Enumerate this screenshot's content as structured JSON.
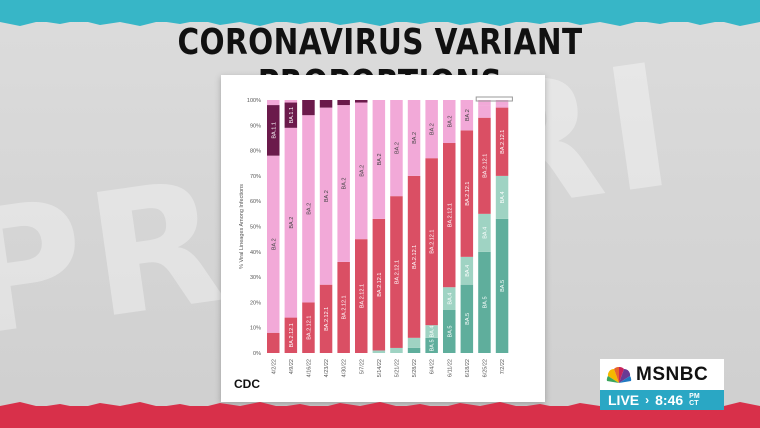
{
  "headline": "CORONAVIRUS VARIANT PROPORTIONS",
  "source_label": "CDC",
  "network": {
    "logo": "MSNBC",
    "live_label": "LIVE",
    "time": "8:46",
    "timezone_top": "PM",
    "timezone_bottom": "CT"
  },
  "colors": {
    "BA.1.1": "#6b1a4b",
    "BA.2": "#f2a9d8",
    "BA.2.12.1": "#da4f64",
    "BA.4": "#9fd3c3",
    "BA.5": "#5fae9c",
    "top_strip": "#37b6c7",
    "bottom_strip": "#d8304a",
    "live_bg": "#2aa7c4"
  },
  "chart_data": {
    "type": "bar",
    "stacked": true,
    "ylabel": "% Viral Lineages Among Infections",
    "ylim": [
      0,
      100
    ],
    "yticks": [
      "0%",
      "10%",
      "20%",
      "30%",
      "40%",
      "50%",
      "60%",
      "70%",
      "80%",
      "90%",
      "100%"
    ],
    "categories": [
      "4/2/22",
      "4/9/22",
      "4/16/22",
      "4/23/22",
      "4/30/22",
      "5/7/22",
      "5/14/22",
      "5/21/22",
      "5/28/22",
      "6/4/22",
      "6/11/22",
      "6/18/22",
      "6/25/22",
      "7/2/22"
    ],
    "series": [
      {
        "name": "BA.5",
        "color_key": "BA.5",
        "values": [
          0,
          0,
          0,
          0,
          0,
          0,
          0,
          0,
          2,
          6,
          17,
          27,
          40,
          53
        ]
      },
      {
        "name": "BA.4",
        "color_key": "BA.4",
        "values": [
          0,
          0,
          0,
          0,
          0,
          0,
          1,
          2,
          4,
          5,
          9,
          11,
          15,
          17
        ]
      },
      {
        "name": "BA.2.12.1",
        "color_key": "BA.2.12.1",
        "values": [
          8,
          14,
          20,
          27,
          36,
          45,
          52,
          60,
          64,
          66,
          57,
          50,
          38,
          27
        ]
      },
      {
        "name": "BA.2",
        "color_key": "BA.2",
        "values": [
          70,
          75,
          74,
          70,
          62,
          54,
          47,
          38,
          30,
          23,
          17,
          12,
          5,
          1
        ]
      },
      {
        "name": "BA.1.1",
        "color_key": "BA.1.1",
        "values": [
          20,
          10,
          6,
          3,
          2,
          1,
          0,
          0,
          0,
          0,
          0,
          0,
          0,
          0
        ]
      },
      {
        "name": "other",
        "color_key": "BA.2",
        "values": [
          2,
          1,
          0,
          0,
          0,
          0,
          0,
          0,
          0,
          0,
          0,
          0,
          2,
          2
        ]
      }
    ],
    "segment_labels": [
      [
        [],
        [
          "BA.2"
        ],
        [
          "BA.1.1"
        ]
      ],
      [
        [
          "BA.2.12.1"
        ],
        [
          "BA.2"
        ],
        [
          "BA.1.1"
        ]
      ],
      [
        [
          "BA.2.12.1"
        ],
        [
          "BA.2"
        ]
      ],
      [
        [
          "BA.2.12.1"
        ],
        [
          "BA.2"
        ]
      ],
      [
        [
          "BA.2.12.1"
        ],
        [
          "BA.2"
        ]
      ],
      [
        [
          "BA.2.12.1"
        ],
        [
          "BA.2"
        ]
      ],
      [
        [
          "BA.2.12.1"
        ],
        [
          "BA.2"
        ]
      ],
      [
        [
          "BA.2.12.1"
        ],
        [
          "BA.2"
        ]
      ],
      [
        [
          "BA.2.12.1"
        ],
        [
          "BA.2"
        ]
      ],
      [
        [
          "BA.5"
        ],
        [
          "BA.4"
        ],
        [
          "BA.2.12.1"
        ],
        [
          "BA.2"
        ]
      ],
      [
        [
          "BA.5"
        ],
        [
          "BA.4"
        ],
        [
          "BA.2.12.1"
        ],
        [
          "BA.2"
        ]
      ],
      [
        [
          "BA.5"
        ],
        [
          "BA.4"
        ],
        [
          "BA.2.12.1"
        ],
        [
          "BA.2"
        ]
      ],
      [
        [
          "BA.5"
        ],
        [
          "BA.4"
        ],
        [
          "BA.2.12.1"
        ]
      ],
      [
        [
          "BA.5"
        ],
        [
          "BA.4"
        ],
        [
          "BA.2.12.1"
        ]
      ]
    ]
  }
}
